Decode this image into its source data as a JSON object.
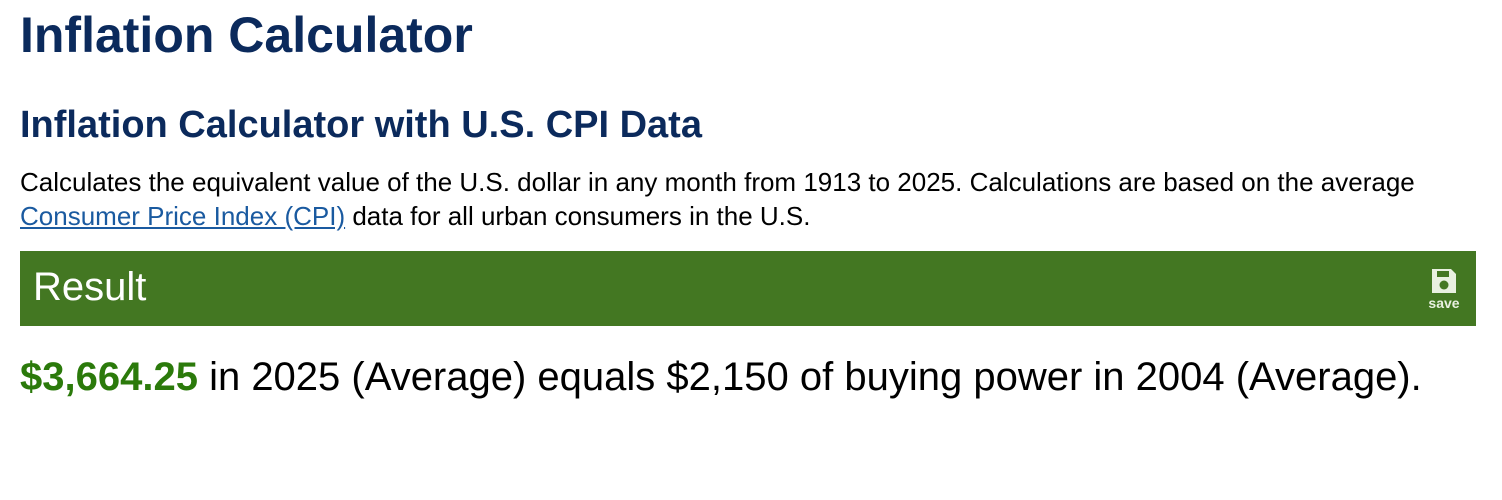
{
  "page_title": "Inflation Calculator",
  "section_title": "Inflation Calculator with U.S. CPI Data",
  "description": {
    "before_link": "Calculates the equivalent value of the U.S. dollar in any month from 1913 to 2025. Calculations are based on the average ",
    "link_text": "Consumer Price Index (CPI)",
    "after_link": " data for all urban consumers in the U.S."
  },
  "result_bar": {
    "title": "Result",
    "save_label": "save",
    "save_icon": "floppy-disk-icon",
    "color": "#437722"
  },
  "result": {
    "amount": "$3,664.25",
    "text": " in 2025 (Average) equals $2,150 of buying power in 2004 (Average)."
  }
}
